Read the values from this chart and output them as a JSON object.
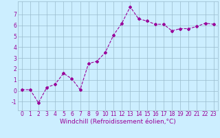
{
  "x": [
    0,
    1,
    2,
    3,
    4,
    5,
    6,
    7,
    8,
    9,
    10,
    11,
    12,
    13,
    14,
    15,
    16,
    17,
    18,
    19,
    20,
    21,
    22,
    23
  ],
  "y": [
    0.1,
    0.1,
    -1.1,
    0.3,
    0.6,
    1.6,
    1.1,
    0.1,
    2.5,
    2.7,
    3.5,
    5.1,
    6.2,
    7.7,
    6.6,
    6.4,
    6.1,
    6.1,
    5.5,
    5.7,
    5.7,
    5.9,
    6.2,
    6.1
  ],
  "line_color": "#990099",
  "marker": "D",
  "marker_size": 2,
  "bg_color": "#cceeff",
  "grid_color": "#99bbcc",
  "xlabel": "Windchill (Refroidissement éolien,°C)",
  "xlabel_color": "#990099",
  "xlim": [
    -0.5,
    23.5
  ],
  "ylim": [
    -1.8,
    8.2
  ],
  "yticks": [
    -1,
    0,
    1,
    2,
    3,
    4,
    5,
    6,
    7
  ],
  "xticks": [
    0,
    1,
    2,
    3,
    4,
    5,
    6,
    7,
    8,
    9,
    10,
    11,
    12,
    13,
    14,
    15,
    16,
    17,
    18,
    19,
    20,
    21,
    22,
    23
  ],
  "tick_color": "#990099",
  "label_fontsize": 6.5,
  "tick_fontsize": 5.5,
  "linewidth": 0.8
}
